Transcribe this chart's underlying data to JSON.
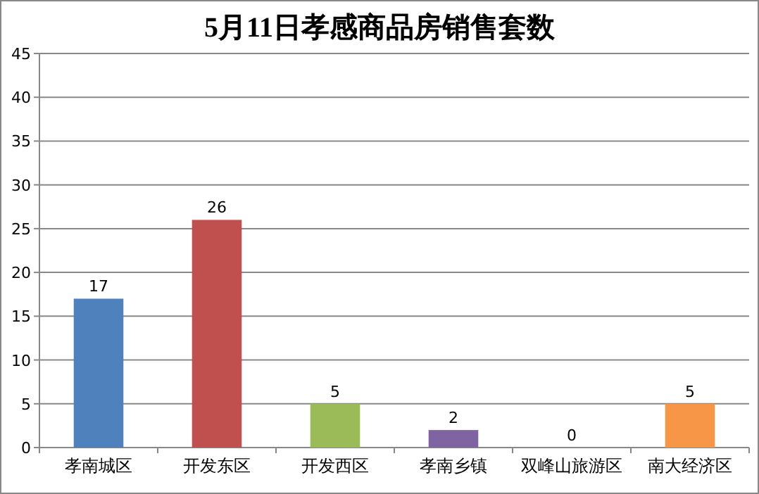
{
  "chart_data": {
    "type": "bar",
    "title": "5月11日孝感商品房销售套数",
    "categories": [
      "孝南城区",
      "开发东区",
      "开发西区",
      "孝南乡镇",
      "双峰山旅游区",
      "南大经济区"
    ],
    "values": [
      17,
      26,
      5,
      2,
      0,
      5
    ],
    "colors": [
      "#4f81bd",
      "#c0504d",
      "#9bbb59",
      "#8064a2",
      "#4bacc6",
      "#f79646"
    ],
    "ylim": [
      0,
      45
    ],
    "yticks": [
      0,
      5,
      10,
      15,
      20,
      25,
      30,
      35,
      40,
      45
    ],
    "grid": "y",
    "data_labels": true
  }
}
